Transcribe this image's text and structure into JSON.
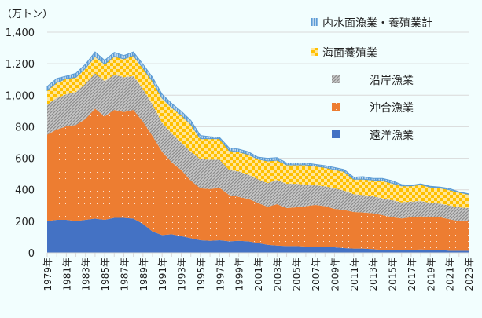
{
  "chart_data": {
    "type": "area",
    "stacked": true,
    "ylabel": "（万トン）",
    "ylim": [
      0,
      1400
    ],
    "yticks": [
      0,
      200,
      400,
      600,
      800,
      1000,
      1200,
      1400
    ],
    "ytick_labels": [
      "0",
      "200",
      "400",
      "600",
      "800",
      "1,000",
      "1,200",
      "1,400"
    ],
    "grid": true,
    "legend_position": "top-right",
    "x": [
      1979,
      1980,
      1981,
      1982,
      1983,
      1984,
      1985,
      1986,
      1987,
      1988,
      1989,
      1990,
      1991,
      1992,
      1993,
      1994,
      1995,
      1996,
      1997,
      1998,
      1999,
      2000,
      2001,
      2002,
      2003,
      2004,
      2005,
      2006,
      2007,
      2008,
      2009,
      2010,
      2011,
      2012,
      2013,
      2014,
      2015,
      2016,
      2017,
      2018,
      2019,
      2020,
      2021,
      2022,
      2023
    ],
    "xtick_labels": [
      "1979年",
      "1981年",
      "1983年",
      "1985年",
      "1987年",
      "1989年",
      "1991年",
      "1993年",
      "1995年",
      "1997年",
      "1999年",
      "2001年",
      "2003年",
      "2005年",
      "2007年",
      "2009年",
      "2011年",
      "2013年",
      "2015年",
      "2017年",
      "2019年",
      "2021年",
      "2023年"
    ],
    "series": [
      {
        "name": "遠洋漁業",
        "color": "#4472c4",
        "pattern": "solid",
        "values": [
          201,
          209,
          209,
          201,
          209,
          217,
          209,
          222,
          222,
          217,
          184,
          135,
          113,
          118,
          106,
          93,
          80,
          76,
          80,
          73,
          76,
          73,
          62,
          51,
          46,
          43,
          43,
          40,
          40,
          35,
          35,
          30,
          27,
          27,
          23,
          18,
          18,
          18,
          18,
          21,
          18,
          18,
          13,
          13,
          13
        ]
      },
      {
        "name": "沖合漁業",
        "color": "#ed7d31",
        "pattern": "dots",
        "values": [
          548,
          573,
          593,
          610,
          640,
          698,
          656,
          685,
          671,
          690,
          648,
          606,
          528,
          456,
          419,
          365,
          329,
          329,
          332,
          294,
          279,
          269,
          255,
          241,
          263,
          241,
          246,
          256,
          264,
          261,
          244,
          242,
          232,
          229,
          228,
          221,
          208,
          200,
          208,
          210,
          208,
          208,
          200,
          188,
          188
        ]
      },
      {
        "name": "沿岸漁業",
        "color": "#a5a5a5",
        "pattern": "diagonal",
        "values": [
          191,
          200,
          204,
          209,
          224,
          224,
          224,
          224,
          221,
          215,
          207,
          199,
          183,
          183,
          174,
          183,
          185,
          186,
          179,
          158,
          161,
          153,
          150,
          150,
          153,
          154,
          149,
          137,
          124,
          126,
          130,
          123,
          113,
          111,
          108,
          106,
          108,
          102,
          99,
          98,
          91,
          86,
          87,
          88,
          83
        ]
      },
      {
        "name": "海面養殖業",
        "color": "#ffc000",
        "pattern": "checker",
        "values": [
          91,
          99,
          100,
          94,
          99,
          108,
          108,
          116,
          117,
          130,
          133,
          149,
          158,
          166,
          175,
          174,
          130,
          133,
          133,
          124,
          125,
          129,
          128,
          141,
          126,
          120,
          120,
          125,
          122,
          119,
          119,
          121,
          95,
          100,
          103,
          113,
          108,
          105,
          100,
          104,
          100,
          100,
          100,
          95,
          88
        ]
      },
      {
        "name": "内水面漁業・養殖業計",
        "color": "#5b9bd5",
        "pattern": "vertical",
        "values": [
          25,
          25,
          16,
          25,
          25,
          28,
          25,
          25,
          21,
          23,
          25,
          25,
          24,
          25,
          24,
          25,
          20,
          13,
          8,
          17,
          17,
          17,
          12,
          17,
          16,
          12,
          12,
          12,
          11,
          12,
          13,
          12,
          13,
          16,
          10,
          14,
          16,
          8,
          3,
          5,
          5,
          5,
          8,
          3,
          3
        ]
      }
    ]
  }
}
